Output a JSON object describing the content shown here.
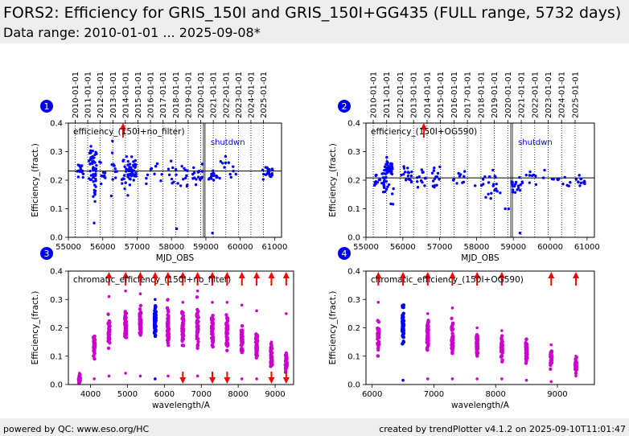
{
  "header": {
    "title": "FORS2: Efficiency for GRIS_150I and GRIS_150I+GG435 (FULL range, 5732 days)",
    "subtitle": "Data range: 2010-01-01 ... 2025-09-08*"
  },
  "footer": {
    "left": "powered by QC: www.eso.org/HC",
    "right": "created by trendPlotter v4.1.2 on 2025-09-10T11:01:47"
  },
  "colors": {
    "blue": "#0000ff",
    "magenta": "#cc00cc",
    "red": "#ff0000",
    "hline": "#000000"
  },
  "chart_data": [
    {
      "panel_label": "1",
      "type": "scatter",
      "annotation": "efficiency_(150I+no_filter)",
      "label_shutdown": "shutdwn",
      "xlabel": "MJD_OBS",
      "ylabel": "Efficiency_(fract.)",
      "xlim": [
        55000,
        61200
      ],
      "ylim": [
        0,
        0.4
      ],
      "xticks": [
        55000,
        56000,
        57000,
        58000,
        59000,
        60000,
        61000
      ],
      "yticks": [
        0.0,
        0.1,
        0.2,
        0.3,
        0.4
      ],
      "top_ticks": [
        "2010-01-01",
        "2011-01-01",
        "2012-01-01",
        "2013-01-01",
        "2014-01-01",
        "2015-01-01",
        "2016-01-01",
        "2017-01-01",
        "2018-01-01",
        "2019-01-01",
        "2020-01-01",
        "2021-01-01",
        "2022-01-01",
        "2023-01-01",
        "2024-01-01",
        "2025-01-01"
      ],
      "top_tick_mjd": [
        55197,
        55562,
        55927,
        56293,
        56658,
        57023,
        57388,
        57754,
        58119,
        58484,
        58849,
        59215,
        59580,
        59945,
        60310,
        60676
      ],
      "dotted_vlines": [
        55197,
        55562,
        55927,
        56293,
        56658,
        57023,
        57388,
        57754,
        58119,
        58484,
        58849,
        59215,
        59580,
        59945,
        60310,
        60676
      ],
      "solid_vlines": [
        58930,
        58975
      ],
      "hline": 0.232,
      "overflow_mjd": [
        56590
      ],
      "point_groups": [
        {
          "center": 55350,
          "spread": 120,
          "mean": 0.235,
          "sd": 0.015,
          "n": 16
        },
        {
          "center": 55700,
          "spread": 120,
          "mean": 0.25,
          "sd": 0.03,
          "n": 40
        },
        {
          "center": 55760,
          "spread": 40,
          "mean": 0.16,
          "sd": 0.06,
          "n": 14
        },
        {
          "center": 56000,
          "spread": 100,
          "mean": 0.245,
          "sd": 0.025,
          "n": 10
        },
        {
          "center": 56300,
          "spread": 120,
          "mean": 0.25,
          "sd": 0.04,
          "n": 10
        },
        {
          "center": 56700,
          "spread": 150,
          "mean": 0.22,
          "sd": 0.035,
          "n": 20
        },
        {
          "center": 56850,
          "spread": 120,
          "mean": 0.235,
          "sd": 0.02,
          "n": 36
        },
        {
          "center": 57500,
          "spread": 250,
          "mean": 0.23,
          "sd": 0.02,
          "n": 10
        },
        {
          "center": 58200,
          "spread": 300,
          "mean": 0.225,
          "sd": 0.02,
          "n": 20
        },
        {
          "center": 58750,
          "spread": 150,
          "mean": 0.215,
          "sd": 0.02,
          "n": 18
        },
        {
          "center": 59200,
          "spread": 150,
          "mean": 0.215,
          "sd": 0.015,
          "n": 16
        },
        {
          "center": 59700,
          "spread": 300,
          "mean": 0.24,
          "sd": 0.02,
          "n": 12
        },
        {
          "center": 60800,
          "spread": 150,
          "mean": 0.23,
          "sd": 0.012,
          "n": 22
        }
      ],
      "outliers": [
        [
          55750,
          0.05
        ],
        [
          58150,
          0.03
        ],
        [
          59190,
          0.015
        ],
        [
          56250,
          0.145
        ],
        [
          56640,
          0.17
        ]
      ]
    },
    {
      "panel_label": "2",
      "type": "scatter",
      "annotation": "efficiency_(150I+OG590)",
      "label_shutdown": "shutdwn",
      "xlabel": "MJD_OBS",
      "ylabel": "Efficiency_(fract.)",
      "xlim": [
        55000,
        61200
      ],
      "ylim": [
        0,
        0.4
      ],
      "xticks": [
        55000,
        56000,
        57000,
        58000,
        59000,
        60000,
        61000
      ],
      "yticks": [
        0.0,
        0.1,
        0.2,
        0.3,
        0.4
      ],
      "top_ticks": [
        "2010-01-01",
        "2011-01-01",
        "2012-01-01",
        "2013-01-01",
        "2014-01-01",
        "2015-01-01",
        "2016-01-01",
        "2017-01-01",
        "2018-01-01",
        "2019-01-01",
        "2020-01-01",
        "2021-01-01",
        "2022-01-01",
        "2023-01-01",
        "2024-01-01",
        "2025-01-01"
      ],
      "top_tick_mjd": [
        55197,
        55562,
        55927,
        56293,
        56658,
        57023,
        57388,
        57754,
        58119,
        58484,
        58849,
        59215,
        59580,
        59945,
        60310,
        60676
      ],
      "dotted_vlines": [
        55197,
        55562,
        55927,
        56293,
        56658,
        57023,
        57388,
        57754,
        58119,
        58484,
        58849,
        59215,
        59580,
        59945,
        60310,
        60676
      ],
      "solid_vlines": [
        58930,
        58975
      ],
      "hline": 0.208,
      "overflow_mjd": [
        56570
      ],
      "point_groups": [
        {
          "center": 55350,
          "spread": 120,
          "mean": 0.205,
          "sd": 0.015,
          "n": 14
        },
        {
          "center": 55600,
          "spread": 120,
          "mean": 0.24,
          "sd": 0.015,
          "n": 40
        },
        {
          "center": 55600,
          "spread": 150,
          "mean": 0.18,
          "sd": 0.025,
          "n": 20
        },
        {
          "center": 56100,
          "spread": 150,
          "mean": 0.225,
          "sd": 0.02,
          "n": 18
        },
        {
          "center": 56500,
          "spread": 120,
          "mean": 0.2,
          "sd": 0.03,
          "n": 12
        },
        {
          "center": 56900,
          "spread": 120,
          "mean": 0.21,
          "sd": 0.02,
          "n": 14
        },
        {
          "center": 57500,
          "spread": 250,
          "mean": 0.2,
          "sd": 0.02,
          "n": 10
        },
        {
          "center": 58300,
          "spread": 350,
          "mean": 0.19,
          "sd": 0.025,
          "n": 22
        },
        {
          "center": 59100,
          "spread": 150,
          "mean": 0.18,
          "sd": 0.015,
          "n": 20
        },
        {
          "center": 59600,
          "spread": 250,
          "mean": 0.21,
          "sd": 0.015,
          "n": 10
        },
        {
          "center": 60300,
          "spread": 250,
          "mean": 0.2,
          "sd": 0.01,
          "n": 10
        },
        {
          "center": 60800,
          "spread": 150,
          "mean": 0.195,
          "sd": 0.01,
          "n": 14
        }
      ],
      "outliers": [
        [
          58780,
          0.1
        ],
        [
          59180,
          0.015
        ],
        [
          58870,
          0.1
        ]
      ]
    },
    {
      "panel_label": "3",
      "type": "scatter",
      "annotation": "chromatic_efficiency_(150I+no_filter)",
      "xlabel": "wavelength/A",
      "ylabel": "Efficiency_(fract.)",
      "xlim": [
        3400,
        9500
      ],
      "ylim": [
        0,
        0.4
      ],
      "xticks": [
        4000,
        5000,
        6000,
        7000,
        8000,
        9000
      ],
      "yticks": [
        0.0,
        0.1,
        0.2,
        0.3,
        0.4
      ],
      "columns": [
        {
          "x": 3700,
          "mean": 0.02,
          "sd": 0.008,
          "min": 0.005,
          "max": 0.04,
          "n": 26,
          "color": "magenta",
          "up": false,
          "down": false
        },
        {
          "x": 4100,
          "mean": 0.13,
          "sd": 0.02,
          "min": 0.02,
          "max": 0.17,
          "n": 50,
          "color": "magenta",
          "up": false,
          "down": false
        },
        {
          "x": 4500,
          "mean": 0.18,
          "sd": 0.025,
          "min": 0.03,
          "max": 0.31,
          "n": 50,
          "color": "magenta",
          "up": true,
          "down": false
        },
        {
          "x": 4950,
          "mean": 0.21,
          "sd": 0.025,
          "min": 0.04,
          "max": 0.33,
          "n": 50,
          "color": "magenta",
          "up": true,
          "down": false
        },
        {
          "x": 5350,
          "mean": 0.22,
          "sd": 0.025,
          "min": 0.03,
          "max": 0.32,
          "n": 50,
          "color": "magenta",
          "up": true,
          "down": false
        },
        {
          "x": 5750,
          "mean": 0.22,
          "sd": 0.025,
          "min": 0.02,
          "max": 0.3,
          "n": 60,
          "color": "blue",
          "up": true,
          "down": false
        },
        {
          "x": 6100,
          "mean": 0.21,
          "sd": 0.03,
          "min": 0.03,
          "max": 0.3,
          "n": 50,
          "color": "magenta",
          "up": true,
          "down": false
        },
        {
          "x": 6500,
          "mean": 0.2,
          "sd": 0.025,
          "min": 0.02,
          "max": 0.29,
          "n": 50,
          "color": "magenta",
          "up": true,
          "down": true
        },
        {
          "x": 6900,
          "mean": 0.21,
          "sd": 0.035,
          "min": 0.03,
          "max": 0.33,
          "n": 50,
          "color": "magenta",
          "up": true,
          "down": false
        },
        {
          "x": 7300,
          "mean": 0.19,
          "sd": 0.03,
          "min": 0.02,
          "max": 0.29,
          "n": 50,
          "color": "magenta",
          "up": true,
          "down": true
        },
        {
          "x": 7700,
          "mean": 0.18,
          "sd": 0.03,
          "min": 0.02,
          "max": 0.29,
          "n": 50,
          "color": "magenta",
          "up": true,
          "down": true
        },
        {
          "x": 8100,
          "mean": 0.16,
          "sd": 0.025,
          "min": 0.02,
          "max": 0.28,
          "n": 50,
          "color": "magenta",
          "up": true,
          "down": false
        },
        {
          "x": 8500,
          "mean": 0.14,
          "sd": 0.025,
          "min": 0.02,
          "max": 0.26,
          "n": 50,
          "color": "magenta",
          "up": true,
          "down": false
        },
        {
          "x": 8900,
          "mean": 0.1,
          "sd": 0.02,
          "min": 0.02,
          "max": 0.15,
          "n": 40,
          "color": "magenta",
          "up": true,
          "down": true
        },
        {
          "x": 9300,
          "mean": 0.08,
          "sd": 0.015,
          "min": 0.02,
          "max": 0.25,
          "n": 40,
          "color": "magenta",
          "up": true,
          "down": true
        }
      ]
    },
    {
      "panel_label": "4",
      "type": "scatter",
      "annotation": "chromatic_efficiency_(150I+OG590)",
      "xlabel": "wavelength/A",
      "ylabel": "Efficiency_(fract.)",
      "xlim": [
        5900,
        9600
      ],
      "ylim": [
        0,
        0.4
      ],
      "xticks": [
        6000,
        7000,
        8000,
        9000
      ],
      "yticks": [
        0.0,
        0.1,
        0.2,
        0.3,
        0.4
      ],
      "columns": [
        {
          "x": 6100,
          "mean": 0.17,
          "sd": 0.025,
          "min": 0.1,
          "max": 0.29,
          "n": 40,
          "color": "magenta",
          "up": true,
          "down": false
        },
        {
          "x": 6500,
          "mean": 0.21,
          "sd": 0.03,
          "min": 0.015,
          "max": 0.28,
          "n": 60,
          "color": "blue",
          "up": true,
          "down": false
        },
        {
          "x": 6900,
          "mean": 0.18,
          "sd": 0.025,
          "min": 0.02,
          "max": 0.25,
          "n": 50,
          "color": "magenta",
          "up": true,
          "down": false
        },
        {
          "x": 7300,
          "mean": 0.16,
          "sd": 0.025,
          "min": 0.02,
          "max": 0.27,
          "n": 50,
          "color": "magenta",
          "up": true,
          "down": false
        },
        {
          "x": 7700,
          "mean": 0.14,
          "sd": 0.02,
          "min": 0.02,
          "max": 0.2,
          "n": 50,
          "color": "magenta",
          "up": true,
          "down": false
        },
        {
          "x": 8100,
          "mean": 0.13,
          "sd": 0.02,
          "min": 0.02,
          "max": 0.19,
          "n": 50,
          "color": "magenta",
          "up": true,
          "down": false
        },
        {
          "x": 8500,
          "mean": 0.11,
          "sd": 0.02,
          "min": 0.015,
          "max": 0.16,
          "n": 50,
          "color": "magenta",
          "up": false,
          "down": false
        },
        {
          "x": 8900,
          "mean": 0.09,
          "sd": 0.015,
          "min": 0.01,
          "max": 0.14,
          "n": 40,
          "color": "magenta",
          "up": true,
          "down": false
        },
        {
          "x": 9300,
          "mean": 0.07,
          "sd": 0.012,
          "min": 0.03,
          "max": 0.1,
          "n": 30,
          "color": "magenta",
          "up": true,
          "down": false
        }
      ]
    }
  ]
}
